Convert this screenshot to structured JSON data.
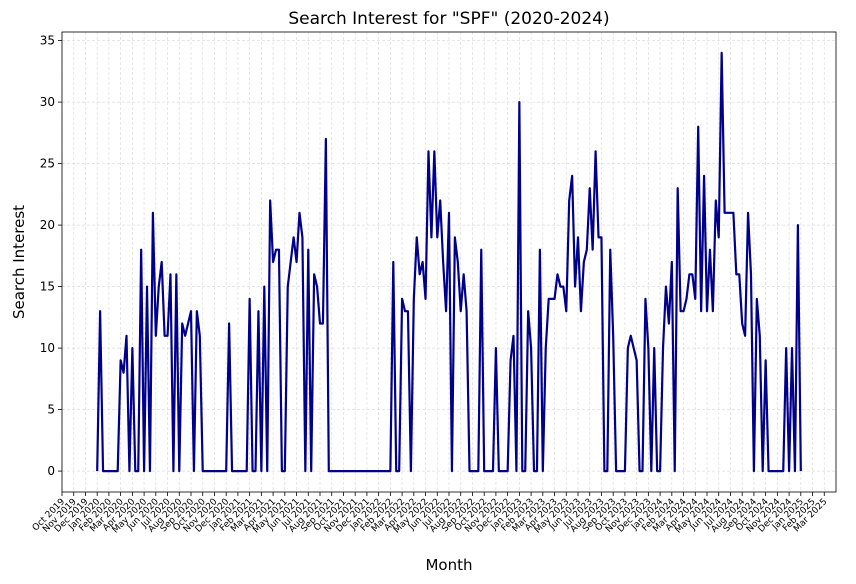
{
  "chart_data": {
    "type": "line",
    "title": "Search Interest for \"SPF\" (2020-2024)",
    "x_label": "Month",
    "y_label": "Search Interest",
    "grid": true,
    "xlim": [
      "2019-10",
      "2025-04"
    ],
    "ylim": [
      -1.7,
      35.7
    ],
    "yticks": [
      0,
      5,
      10,
      15,
      20,
      25,
      30,
      35
    ],
    "xticks": [
      {
        "value": "2019-10",
        "label": "Oct 2019"
      },
      {
        "value": "2019-11",
        "label": "Nov 2019"
      },
      {
        "value": "2019-12",
        "label": "Dec 2019"
      },
      {
        "value": "2020-01",
        "label": "Jan 2020"
      },
      {
        "value": "2020-02",
        "label": "Feb 2020"
      },
      {
        "value": "2020-03",
        "label": "Mar 2020"
      },
      {
        "value": "2020-04",
        "label": "Apr 2020"
      },
      {
        "value": "2020-05",
        "label": "May 2020"
      },
      {
        "value": "2020-06",
        "label": "Jun 2020"
      },
      {
        "value": "2020-07",
        "label": "Jul 2020"
      },
      {
        "value": "2020-08",
        "label": "Aug 2020"
      },
      {
        "value": "2020-09",
        "label": "Sep 2020"
      },
      {
        "value": "2020-10",
        "label": "Oct 2020"
      },
      {
        "value": "2020-11",
        "label": "Nov 2020"
      },
      {
        "value": "2020-12",
        "label": "Dec 2020"
      },
      {
        "value": "2021-01",
        "label": "Jan 2021"
      },
      {
        "value": "2021-02",
        "label": "Feb 2021"
      },
      {
        "value": "2021-03",
        "label": "Mar 2021"
      },
      {
        "value": "2021-04",
        "label": "Apr 2021"
      },
      {
        "value": "2021-05",
        "label": "May 2021"
      },
      {
        "value": "2021-06",
        "label": "Jun 2021"
      },
      {
        "value": "2021-07",
        "label": "Jul 2021"
      },
      {
        "value": "2021-08",
        "label": "Aug 2021"
      },
      {
        "value": "2021-09",
        "label": "Sep 2021"
      },
      {
        "value": "2021-10",
        "label": "Oct 2021"
      },
      {
        "value": "2021-11",
        "label": "Nov 2021"
      },
      {
        "value": "2021-12",
        "label": "Dec 2021"
      },
      {
        "value": "2022-01",
        "label": "Jan 2022"
      },
      {
        "value": "2022-02",
        "label": "Feb 2022"
      },
      {
        "value": "2022-03",
        "label": "Mar 2022"
      },
      {
        "value": "2022-04",
        "label": "Apr 2022"
      },
      {
        "value": "2022-05",
        "label": "May 2022"
      },
      {
        "value": "2022-06",
        "label": "Jun 2022"
      },
      {
        "value": "2022-07",
        "label": "Jul 2022"
      },
      {
        "value": "2022-08",
        "label": "Aug 2022"
      },
      {
        "value": "2022-09",
        "label": "Sep 2022"
      },
      {
        "value": "2022-10",
        "label": "Oct 2022"
      },
      {
        "value": "2022-11",
        "label": "Nov 2022"
      },
      {
        "value": "2022-12",
        "label": "Dec 2022"
      },
      {
        "value": "2023-01",
        "label": "Jan 2023"
      },
      {
        "value": "2023-02",
        "label": "Feb 2023"
      },
      {
        "value": "2023-03",
        "label": "Mar 2023"
      },
      {
        "value": "2023-04",
        "label": "Apr 2023"
      },
      {
        "value": "2023-05",
        "label": "May 2023"
      },
      {
        "value": "2023-06",
        "label": "Jun 2023"
      },
      {
        "value": "2023-07",
        "label": "Jul 2023"
      },
      {
        "value": "2023-08",
        "label": "Aug 2023"
      },
      {
        "value": "2023-09",
        "label": "Sep 2023"
      },
      {
        "value": "2023-10",
        "label": "Oct 2023"
      },
      {
        "value": "2023-11",
        "label": "Nov 2023"
      },
      {
        "value": "2023-12",
        "label": "Dec 2023"
      },
      {
        "value": "2024-01",
        "label": "Jan 2024"
      },
      {
        "value": "2024-02",
        "label": "Feb 2024"
      },
      {
        "value": "2024-03",
        "label": "Mar 2024"
      },
      {
        "value": "2024-04",
        "label": "Apr 2024"
      },
      {
        "value": "2024-05",
        "label": "May 2024"
      },
      {
        "value": "2024-06",
        "label": "Jun 2024"
      },
      {
        "value": "2024-07",
        "label": "Jul 2024"
      },
      {
        "value": "2024-08",
        "label": "Aug 2024"
      },
      {
        "value": "2024-09",
        "label": "Sep 2024"
      },
      {
        "value": "2024-10",
        "label": "Oct 2024"
      },
      {
        "value": "2024-11",
        "label": "Nov 2024"
      },
      {
        "value": "2024-12",
        "label": "Dec 2024"
      },
      {
        "value": "2025-01",
        "label": "Jan 2025"
      },
      {
        "value": "2025-02",
        "label": "Feb 2025"
      },
      {
        "value": "2025-03",
        "label": "Mar 2025"
      }
    ],
    "x": [
      "2020-01",
      "2020-01",
      "2020-01",
      "2020-01",
      "2020-02",
      "2020-02",
      "2020-02",
      "2020-02",
      "2020-03",
      "2020-03",
      "2020-03",
      "2020-03",
      "2020-04",
      "2020-04",
      "2020-04",
      "2020-04",
      "2020-05",
      "2020-05",
      "2020-05",
      "2020-05",
      "2020-06",
      "2020-06",
      "2020-06",
      "2020-06",
      "2020-07",
      "2020-07",
      "2020-07",
      "2020-07",
      "2020-08",
      "2020-08",
      "2020-08",
      "2020-08",
      "2020-09",
      "2020-09",
      "2020-09",
      "2020-09",
      "2020-10",
      "2020-10",
      "2020-10",
      "2020-10",
      "2020-11",
      "2020-11",
      "2020-11",
      "2020-11",
      "2020-12",
      "2020-12",
      "2020-12",
      "2020-12",
      "2021-01",
      "2021-01",
      "2021-01",
      "2021-01",
      "2021-02",
      "2021-02",
      "2021-02",
      "2021-02",
      "2021-03",
      "2021-03",
      "2021-03",
      "2021-03",
      "2021-04",
      "2021-04",
      "2021-04",
      "2021-04",
      "2021-05",
      "2021-05",
      "2021-05",
      "2021-05",
      "2021-06",
      "2021-06",
      "2021-06",
      "2021-06",
      "2021-07",
      "2021-07",
      "2021-07",
      "2021-07",
      "2021-08",
      "2021-08",
      "2021-08",
      "2021-08",
      "2021-09",
      "2021-09",
      "2021-09",
      "2021-09",
      "2021-10",
      "2021-10",
      "2021-10",
      "2021-10",
      "2021-11",
      "2021-11",
      "2021-11",
      "2021-11",
      "2021-12",
      "2021-12",
      "2021-12",
      "2021-12",
      "2022-01",
      "2022-01",
      "2022-01",
      "2022-01",
      "2022-02",
      "2022-02",
      "2022-02",
      "2022-02",
      "2022-03",
      "2022-03",
      "2022-03",
      "2022-03",
      "2022-04",
      "2022-04",
      "2022-04",
      "2022-04",
      "2022-05",
      "2022-05",
      "2022-05",
      "2022-05",
      "2022-06",
      "2022-06",
      "2022-06",
      "2022-06",
      "2022-07",
      "2022-07",
      "2022-07",
      "2022-07",
      "2022-08",
      "2022-08",
      "2022-08",
      "2022-08",
      "2022-09",
      "2022-09",
      "2022-09",
      "2022-09",
      "2022-10",
      "2022-10",
      "2022-10",
      "2022-10",
      "2022-11",
      "2022-11",
      "2022-11",
      "2022-11",
      "2022-12",
      "2022-12",
      "2022-12",
      "2022-12",
      "2023-01",
      "2023-01",
      "2023-01",
      "2023-01",
      "2023-02",
      "2023-02",
      "2023-02",
      "2023-02",
      "2023-03",
      "2023-03",
      "2023-03",
      "2023-03",
      "2023-04",
      "2023-04",
      "2023-04",
      "2023-04",
      "2023-05",
      "2023-05",
      "2023-05",
      "2023-05",
      "2023-06",
      "2023-06",
      "2023-06",
      "2023-06",
      "2023-07",
      "2023-07",
      "2023-07",
      "2023-07",
      "2023-08",
      "2023-08",
      "2023-08",
      "2023-08",
      "2023-09",
      "2023-09",
      "2023-09",
      "2023-09",
      "2023-10",
      "2023-10",
      "2023-10",
      "2023-10",
      "2023-11",
      "2023-11",
      "2023-11",
      "2023-11",
      "2023-12",
      "2023-12",
      "2023-12",
      "2023-12",
      "2024-01",
      "2024-01",
      "2024-01",
      "2024-01",
      "2024-02",
      "2024-02",
      "2024-02",
      "2024-02",
      "2024-03",
      "2024-03",
      "2024-03",
      "2024-03",
      "2024-04",
      "2024-04",
      "2024-04",
      "2024-04",
      "2024-05",
      "2024-05",
      "2024-05",
      "2024-05",
      "2024-06",
      "2024-06",
      "2024-06",
      "2024-06",
      "2024-07",
      "2024-07",
      "2024-07",
      "2024-07",
      "2024-08",
      "2024-08",
      "2024-08",
      "2024-08",
      "2024-09",
      "2024-09",
      "2024-09",
      "2024-09",
      "2024-10",
      "2024-10",
      "2024-10",
      "2024-10",
      "2024-11",
      "2024-11",
      "2024-11",
      "2024-11",
      "2024-12",
      "2024-12",
      "2024-12",
      "2024-12",
      "2025-01"
    ],
    "series": [
      {
        "color": "#00008b",
        "values": [
          0,
          13,
          0,
          0,
          0,
          0,
          0,
          0,
          9,
          8,
          11,
          0,
          10,
          0,
          0,
          18,
          0,
          15,
          0,
          21,
          11,
          15,
          17,
          11,
          11,
          16,
          0,
          16,
          0,
          12,
          11,
          12,
          13,
          0,
          13,
          11,
          0,
          0,
          0,
          0,
          0,
          0,
          0,
          0,
          0,
          12,
          0,
          0,
          0,
          0,
          0,
          0,
          14,
          0,
          0,
          13,
          0,
          15,
          0,
          22,
          17,
          18,
          18,
          0,
          0,
          15,
          17,
          19,
          17,
          21,
          19,
          0,
          18,
          0,
          16,
          15,
          12,
          12,
          27,
          0,
          0,
          0,
          0,
          0,
          0,
          0,
          0,
          0,
          0,
          0,
          0,
          0,
          0,
          0,
          0,
          0,
          0,
          0,
          0,
          0,
          0,
          17,
          0,
          0,
          14,
          13,
          13,
          0,
          14,
          19,
          16,
          17,
          14,
          26,
          19,
          26,
          19,
          22,
          17,
          13,
          21,
          0,
          19,
          17,
          13,
          16,
          13,
          0,
          0,
          0,
          0,
          18,
          0,
          0,
          0,
          0,
          10,
          0,
          0,
          0,
          0,
          9,
          11,
          0,
          30,
          0,
          0,
          13,
          10,
          0,
          0,
          18,
          0,
          10,
          14,
          14,
          14,
          16,
          15,
          15,
          13,
          22,
          24,
          15,
          19,
          13,
          17,
          18,
          23,
          18,
          26,
          19,
          19,
          0,
          0,
          18,
          11,
          0,
          0,
          0,
          0,
          10,
          11,
          10,
          9,
          0,
          0,
          14,
          10,
          0,
          10,
          0,
          0,
          10,
          15,
          12,
          17,
          0,
          23,
          13,
          13,
          14,
          16,
          16,
          14,
          28,
          13,
          24,
          13,
          18,
          13,
          22,
          19,
          34,
          21,
          21,
          21,
          21,
          16,
          16,
          12,
          11,
          21,
          16,
          0,
          14,
          11,
          0,
          9,
          0,
          0,
          0,
          0,
          0,
          0,
          10,
          0,
          10,
          0,
          20,
          0
        ]
      }
    ]
  }
}
